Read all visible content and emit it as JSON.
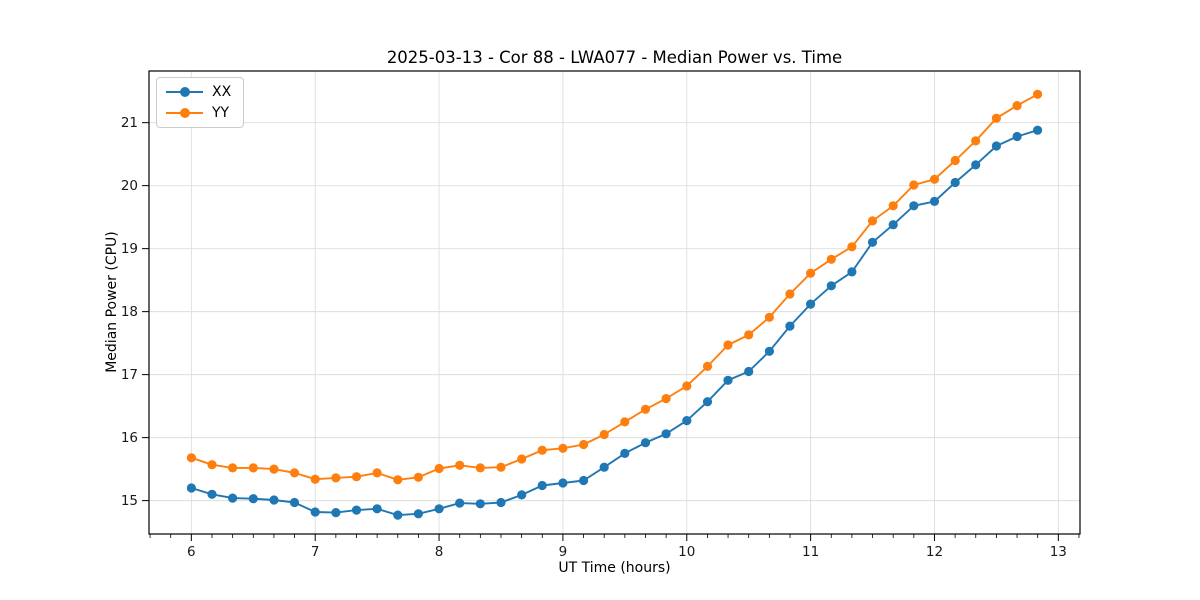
{
  "title": "2025-03-13 - Cor 88 - LWA077 - Median Power vs. Time",
  "colors": {
    "series_xx": "#1f77b4",
    "series_yy": "#ff7f0e",
    "grid": "#dddddd",
    "spine": "#000000",
    "tick_label": "#1a1a1a",
    "legend_border": "#cccccc",
    "background": "#ffffff"
  },
  "legend": {
    "position": "upper-left",
    "items": [
      {
        "label": "XX",
        "color": "#1f77b4"
      },
      {
        "label": "YY",
        "color": "#ff7f0e"
      }
    ]
  },
  "chart_data": {
    "type": "line",
    "title": "2025-03-13 - Cor 88 - LWA077 - Median Power vs. Time",
    "xlabel": "UT Time (hours)",
    "ylabel": "Median Power (CPU)",
    "xlim": [
      5.658,
      13.175
    ],
    "ylim": [
      14.47,
      21.82
    ],
    "xticks": [
      6,
      7,
      8,
      9,
      10,
      11,
      12,
      13
    ],
    "yticks": [
      15,
      16,
      17,
      18,
      19,
      20,
      21
    ],
    "x_minor_divisions": 6,
    "grid": true,
    "legend_position": "upper-left",
    "marker": "circle",
    "x": [
      6.0,
      6.167,
      6.333,
      6.5,
      6.667,
      6.833,
      7.0,
      7.167,
      7.333,
      7.5,
      7.667,
      7.833,
      8.0,
      8.167,
      8.333,
      8.5,
      8.667,
      8.833,
      9.0,
      9.167,
      9.333,
      9.5,
      9.667,
      9.833,
      10.0,
      10.167,
      10.333,
      10.5,
      10.667,
      10.833,
      11.0,
      11.167,
      11.333,
      11.5,
      11.667,
      11.833,
      12.0,
      12.167,
      12.333,
      12.5,
      12.667,
      12.833
    ],
    "series": [
      {
        "name": "XX",
        "color": "#1f77b4",
        "values": [
          15.2,
          15.1,
          15.04,
          15.03,
          15.01,
          14.97,
          14.82,
          14.81,
          14.85,
          14.87,
          14.77,
          14.79,
          14.87,
          14.96,
          14.95,
          14.97,
          15.09,
          15.24,
          15.28,
          15.32,
          15.53,
          15.75,
          15.92,
          16.06,
          16.27,
          16.57,
          16.91,
          17.05,
          17.37,
          17.77,
          18.12,
          18.41,
          18.63,
          19.1,
          19.38,
          19.68,
          19.75,
          20.05,
          20.33,
          20.63,
          20.78,
          20.88
        ]
      },
      {
        "name": "YY",
        "color": "#ff7f0e",
        "values": [
          15.68,
          15.57,
          15.52,
          15.52,
          15.5,
          15.44,
          15.34,
          15.36,
          15.38,
          15.44,
          15.33,
          15.37,
          15.51,
          15.56,
          15.52,
          15.53,
          15.66,
          15.8,
          15.83,
          15.89,
          16.05,
          16.25,
          16.45,
          16.62,
          16.82,
          17.13,
          17.47,
          17.63,
          17.91,
          18.28,
          18.61,
          18.83,
          19.03,
          19.44,
          19.68,
          20.01,
          20.1,
          20.4,
          20.71,
          21.07,
          21.27,
          21.45
        ]
      }
    ]
  }
}
